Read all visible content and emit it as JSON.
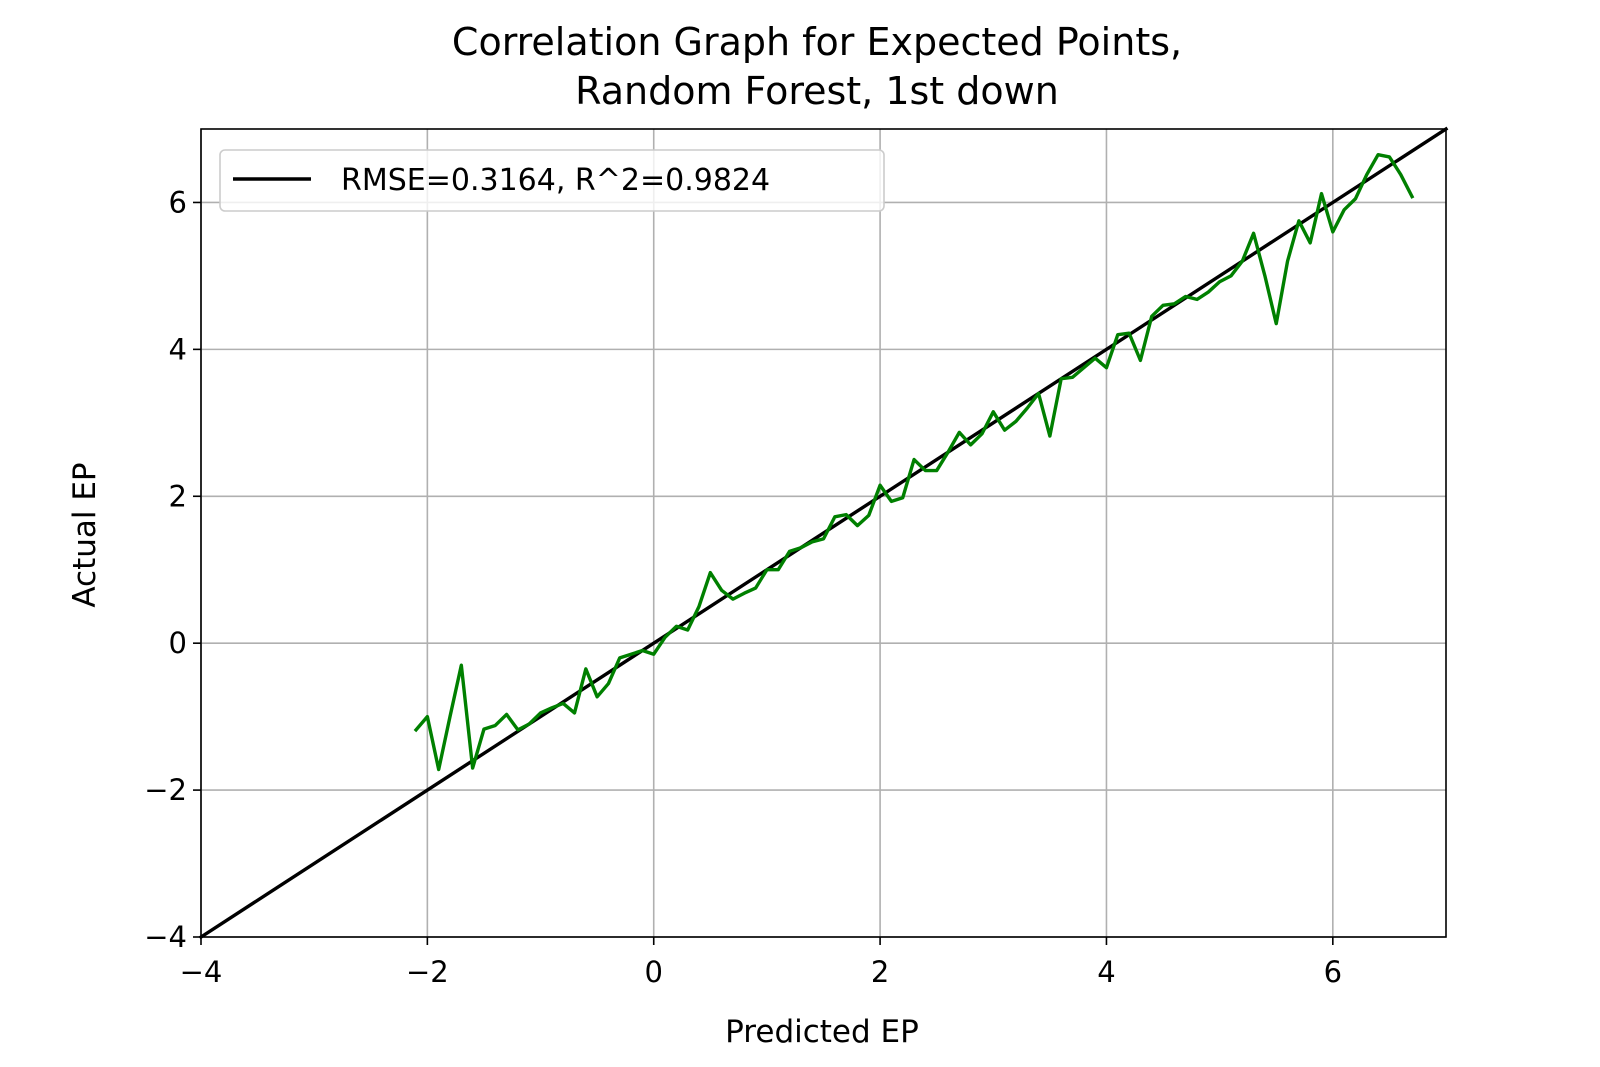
{
  "chart_data": {
    "type": "line",
    "title": [
      "Correlation Graph for Expected Points,",
      "Random Forest, 1st down"
    ],
    "xlabel": "Predicted EP",
    "ylabel": "Actual EP",
    "xlim": [
      -4,
      7
    ],
    "ylim": [
      -4,
      7
    ],
    "xticks": [
      -4,
      -2,
      0,
      2,
      4,
      6
    ],
    "yticks": [
      -4,
      -2,
      0,
      2,
      4,
      6
    ],
    "xtick_labels": [
      "−4",
      "−2",
      "0",
      "2",
      "4",
      "6"
    ],
    "ytick_labels": [
      "−4",
      "−2",
      "0",
      "2",
      "4",
      "6"
    ],
    "grid": true,
    "legend": {
      "entries": [
        "RMSE=0.3164, R^2=0.9824"
      ],
      "placement": "upper-left"
    },
    "series": [
      {
        "name": "RMSE=0.3164, R^2=0.9824",
        "color": "#000000",
        "x": [
          -4,
          7
        ],
        "y": [
          -4,
          7
        ]
      },
      {
        "color": "#008000",
        "x": [
          -2.1,
          -2.0,
          -1.9,
          -1.8,
          -1.7,
          -1.6,
          -1.5,
          -1.4,
          -1.3,
          -1.2,
          -1.1,
          -1.0,
          -0.9,
          -0.8,
          -0.7,
          -0.6,
          -0.5,
          -0.4,
          -0.3,
          -0.2,
          -0.1,
          0.0,
          0.1,
          0.2,
          0.3,
          0.4,
          0.5,
          0.6,
          0.7,
          0.8,
          0.9,
          1.0,
          1.1,
          1.2,
          1.3,
          1.4,
          1.5,
          1.6,
          1.7,
          1.8,
          1.9,
          2.0,
          2.1,
          2.2,
          2.3,
          2.4,
          2.5,
          2.6,
          2.7,
          2.8,
          2.9,
          3.0,
          3.1,
          3.2,
          3.3,
          3.4,
          3.5,
          3.6,
          3.7,
          3.8,
          3.9,
          4.0,
          4.1,
          4.2,
          4.3,
          4.4,
          4.5,
          4.6,
          4.7,
          4.8,
          4.9,
          5.0,
          5.1,
          5.2,
          5.3,
          5.4,
          5.5,
          5.6,
          5.7,
          5.8,
          5.9,
          6.0,
          6.1,
          6.2,
          6.3,
          6.4,
          6.5,
          6.6,
          6.7
        ],
        "y": [
          -1.18,
          -1.0,
          -1.72,
          -1.0,
          -0.3,
          -1.7,
          -1.17,
          -1.12,
          -0.97,
          -1.18,
          -1.1,
          -0.95,
          -0.88,
          -0.82,
          -0.95,
          -0.35,
          -0.73,
          -0.55,
          -0.2,
          -0.15,
          -0.1,
          -0.15,
          0.08,
          0.23,
          0.18,
          0.5,
          0.96,
          0.72,
          0.6,
          0.68,
          0.75,
          1.0,
          1.0,
          1.25,
          1.3,
          1.38,
          1.42,
          1.72,
          1.75,
          1.6,
          1.74,
          2.15,
          1.93,
          1.98,
          2.5,
          2.35,
          2.35,
          2.6,
          2.87,
          2.7,
          2.85,
          3.15,
          2.9,
          3.02,
          3.2,
          3.4,
          2.82,
          3.6,
          3.62,
          3.75,
          3.88,
          3.75,
          4.2,
          4.22,
          3.85,
          4.45,
          4.6,
          4.62,
          4.72,
          4.68,
          4.78,
          4.92,
          5.0,
          5.2,
          5.58,
          5.0,
          4.35,
          5.2,
          5.75,
          5.45,
          6.12,
          5.6,
          5.9,
          6.05,
          6.38,
          6.65,
          6.62,
          6.38,
          6.08
        ]
      }
    ]
  }
}
